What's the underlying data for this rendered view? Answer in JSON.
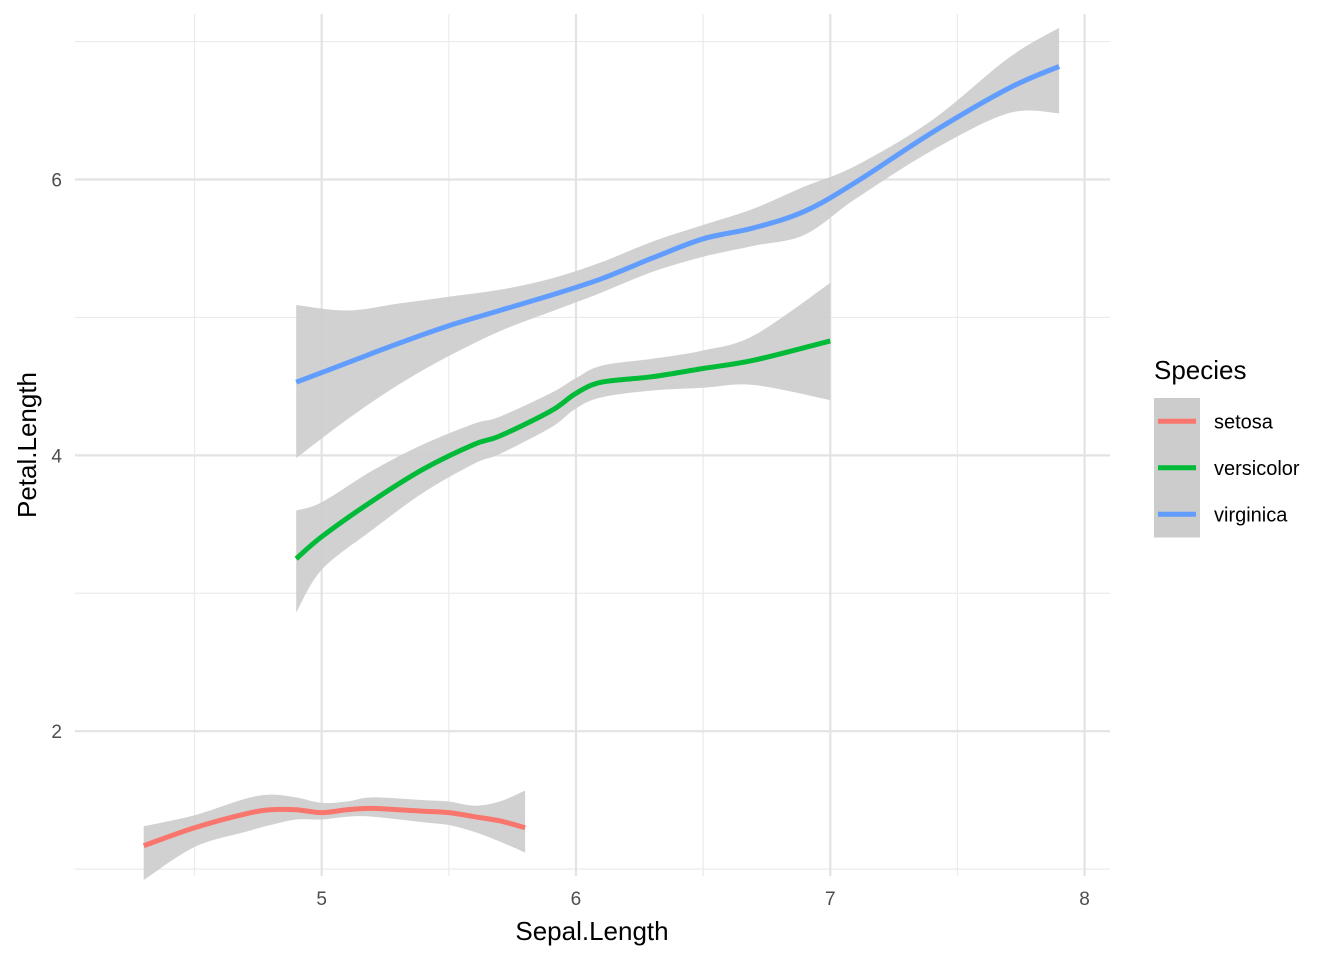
{
  "chart_data": {
    "type": "line",
    "xlabel": "Sepal.Length",
    "ylabel": "Petal.Length",
    "xlim": [
      4.03,
      8.1
    ],
    "ylim": [
      0.95,
      7.2
    ],
    "x_ticks": [
      5,
      6,
      7,
      8
    ],
    "y_ticks": [
      2,
      4,
      6
    ],
    "x_minor_ticks": [
      4.5,
      5.5,
      6.5,
      7.5
    ],
    "y_minor_ticks": [
      1,
      3,
      5,
      7
    ],
    "grid": true,
    "ribbon_color": "#cccccc",
    "legend": {
      "title": "Species",
      "position": "right"
    },
    "series": [
      {
        "name": "setosa",
        "color": "#F8766D",
        "x": [
          4.3,
          4.5,
          4.7,
          4.8,
          4.9,
          5.0,
          5.1,
          5.2,
          5.4,
          5.5,
          5.6,
          5.7,
          5.8
        ],
        "y": [
          1.17,
          1.3,
          1.4,
          1.43,
          1.43,
          1.41,
          1.43,
          1.44,
          1.42,
          1.41,
          1.38,
          1.35,
          1.3
        ],
        "lower": [
          0.92,
          1.16,
          1.27,
          1.32,
          1.36,
          1.36,
          1.38,
          1.38,
          1.34,
          1.32,
          1.27,
          1.2,
          1.12
        ],
        "upper": [
          1.31,
          1.39,
          1.51,
          1.54,
          1.52,
          1.48,
          1.49,
          1.52,
          1.5,
          1.49,
          1.46,
          1.49,
          1.57
        ]
      },
      {
        "name": "versicolor",
        "color": "#00BA38",
        "x": [
          4.9,
          5.0,
          5.2,
          5.4,
          5.6,
          5.7,
          5.9,
          6.0,
          6.1,
          6.3,
          6.5,
          6.7,
          7.0
        ],
        "y": [
          3.25,
          3.41,
          3.67,
          3.9,
          4.08,
          4.14,
          4.32,
          4.45,
          4.53,
          4.57,
          4.63,
          4.69,
          4.83
        ],
        "lower": [
          2.86,
          3.17,
          3.46,
          3.73,
          3.94,
          4.01,
          4.2,
          4.34,
          4.42,
          4.47,
          4.49,
          4.51,
          4.4
        ],
        "upper": [
          3.6,
          3.66,
          3.89,
          4.08,
          4.23,
          4.28,
          4.45,
          4.56,
          4.65,
          4.7,
          4.76,
          4.87,
          5.25
        ]
      },
      {
        "name": "virginica",
        "color": "#619CFF",
        "x": [
          4.9,
          5.1,
          5.3,
          5.5,
          5.7,
          5.9,
          6.1,
          6.3,
          6.5,
          6.7,
          6.9,
          7.1,
          7.4,
          7.7,
          7.9
        ],
        "y": [
          4.53,
          4.67,
          4.81,
          4.94,
          5.05,
          5.16,
          5.28,
          5.43,
          5.57,
          5.65,
          5.77,
          5.98,
          6.34,
          6.66,
          6.82
        ],
        "lower": [
          3.98,
          4.26,
          4.51,
          4.72,
          4.9,
          5.04,
          5.18,
          5.33,
          5.44,
          5.52,
          5.6,
          5.86,
          6.21,
          6.48,
          6.48
        ],
        "upper": [
          5.09,
          5.05,
          5.1,
          5.15,
          5.2,
          5.28,
          5.4,
          5.55,
          5.67,
          5.79,
          5.95,
          6.1,
          6.43,
          6.88,
          7.1
        ]
      }
    ]
  }
}
